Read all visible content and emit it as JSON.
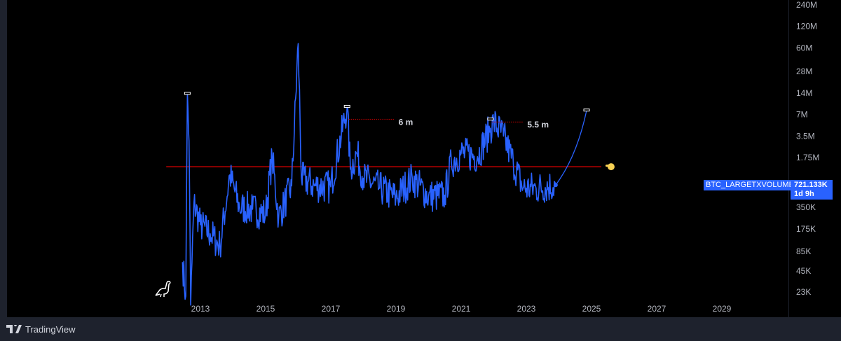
{
  "chart_data": {
    "type": "line",
    "title": "",
    "scale": "log",
    "series": [
      {
        "name": "BTC_LARGETXVOLUME",
        "color": "#2962ff",
        "anchors": [
          [
            2012.45,
            60000
          ],
          [
            2012.55,
            20000
          ],
          [
            2012.6,
            13700000
          ],
          [
            2012.65,
            3000000
          ],
          [
            2012.7,
            15000
          ],
          [
            2012.8,
            400000
          ],
          [
            2013.0,
            200000
          ],
          [
            2013.3,
            150000
          ],
          [
            2013.6,
            100000
          ],
          [
            2013.9,
            1000000
          ],
          [
            2014.2,
            350000
          ],
          [
            2014.6,
            330000
          ],
          [
            2015.0,
            280000
          ],
          [
            2015.2,
            1800000
          ],
          [
            2015.4,
            250000
          ],
          [
            2015.8,
            700000
          ],
          [
            2016.0,
            69000000
          ],
          [
            2016.1,
            900000
          ],
          [
            2016.5,
            700000
          ],
          [
            2017.0,
            680000
          ],
          [
            2017.5,
            9000000
          ],
          [
            2017.6,
            1200000
          ],
          [
            2017.8,
            2000000
          ],
          [
            2018.0,
            900000
          ],
          [
            2018.5,
            650000
          ],
          [
            2019.0,
            480000
          ],
          [
            2019.5,
            900000
          ],
          [
            2020.0,
            500000
          ],
          [
            2020.5,
            520000
          ],
          [
            2020.7,
            1500000
          ],
          [
            2021.0,
            2000000
          ],
          [
            2021.5,
            1800000
          ],
          [
            2021.9,
            4500000
          ],
          [
            2022.0,
            5500000
          ],
          [
            2022.3,
            3500000
          ],
          [
            2022.6,
            1500000
          ],
          [
            2022.9,
            650000
          ],
          [
            2023.3,
            650000
          ],
          [
            2023.9,
            721133
          ]
        ]
      }
    ],
    "projection": {
      "from": [
        2023.9,
        721133
      ],
      "to": [
        2024.85,
        8000000
      ],
      "color": "#2962ff"
    },
    "horizontal_line": {
      "value": 1300000,
      "from": 2011.95,
      "to": 2025.3,
      "color": "#c00000"
    },
    "annotations": [
      {
        "text": "6 m",
        "level": 6000000,
        "from": 2017.55,
        "to": 2018.95
      },
      {
        "text": "5.5 m",
        "level": 5500000,
        "from": 2021.95,
        "to": 2022.9
      }
    ],
    "markers": [
      [
        2012.6,
        13700000
      ],
      [
        2017.5,
        9000000
      ],
      [
        2021.9,
        6000000
      ],
      [
        2024.85,
        8000000
      ]
    ],
    "x_ticks": [
      "2013",
      "2015",
      "2017",
      "2019",
      "2021",
      "2023",
      "2025",
      "2027",
      "2029"
    ],
    "x_tick_values": [
      2013,
      2015,
      2017,
      2019,
      2021,
      2023,
      2025,
      2027,
      2029
    ],
    "y_ticks": [
      "240M",
      "120M",
      "60M",
      "28M",
      "14M",
      "7M",
      "3.5M",
      "1.75M",
      "350K",
      "175K",
      "85K",
      "45K",
      "23K"
    ],
    "y_tick_values": [
      240000000,
      120000000,
      60000000,
      28000000,
      14000000,
      7000000,
      3500000,
      1750000,
      350000,
      175000,
      85000,
      45000,
      23000
    ],
    "last_value_label": "721.133K",
    "countdown": "1d 9h",
    "symbol": "BTC_LARGETXVOLUME"
  },
  "footer": {
    "brand": "TradingView"
  }
}
